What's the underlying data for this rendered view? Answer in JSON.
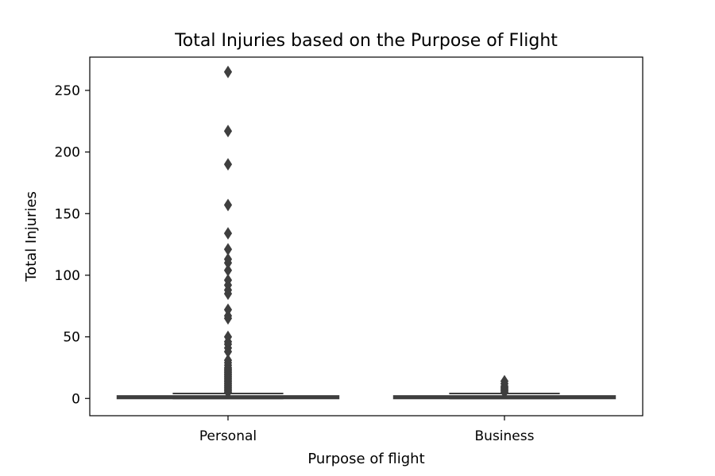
{
  "chart_data": {
    "type": "box",
    "title": "Total Injuries based on the Purpose of Flight",
    "xlabel": "Purpose of flight",
    "ylabel": "Total Injuries",
    "categories": [
      "Personal",
      "Business"
    ],
    "ylim": [
      -14,
      277
    ],
    "yticks": [
      0,
      50,
      100,
      150,
      200,
      250
    ],
    "grid": false,
    "legend": "none",
    "colors": {
      "box": "#3f3f3f",
      "frame": "#000000"
    },
    "boxes": [
      {
        "category": "Personal",
        "q1": 0,
        "median": 1,
        "q3": 2,
        "whisker_low": 0,
        "whisker_high": 4,
        "outliers": [
          5,
          6,
          7,
          8,
          9,
          10,
          11,
          12,
          13,
          14,
          15,
          16,
          17,
          18,
          19,
          20,
          21,
          22,
          23,
          24,
          25,
          27,
          29,
          31,
          38,
          41,
          44,
          46,
          50,
          65,
          67,
          72,
          85,
          88,
          92,
          96,
          104,
          110,
          113,
          121,
          134,
          157,
          190,
          217,
          265
        ]
      },
      {
        "category": "Business",
        "q1": 0,
        "median": 1,
        "q3": 2,
        "whisker_low": 0,
        "whisker_high": 4,
        "outliers": [
          5,
          6,
          7,
          8,
          9,
          10,
          12,
          14
        ]
      }
    ]
  }
}
